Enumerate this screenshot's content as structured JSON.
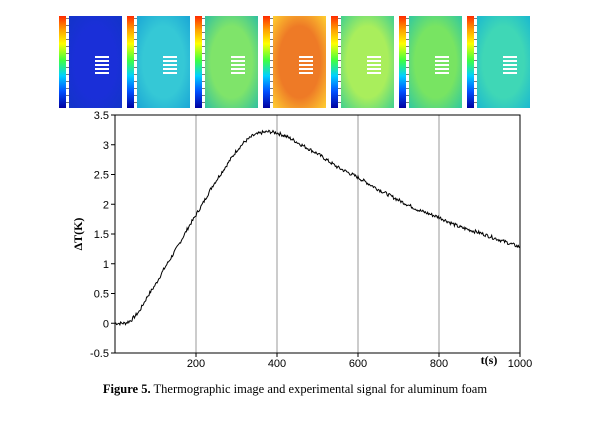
{
  "thermographic_images": {
    "count": 7,
    "field_colors": [
      "#1a2fd8",
      "#35c8d6",
      "#7fe46a",
      "#ee7a26",
      "#a9ee5c",
      "#78e462",
      "#3fd7b6"
    ],
    "edge_colors": [
      "#1234c8",
      "#1aa6d6",
      "#30c0a0",
      "#ffcf30",
      "#40d090",
      "#30c8a0",
      "#1ab8d0"
    ]
  },
  "chart_data": {
    "type": "line",
    "title": "",
    "xlabel": "t(s)",
    "ylabel": "ΔT(K)",
    "xlim": [
      0,
      1000
    ],
    "ylim": [
      -0.5,
      3.5
    ],
    "x_ticks": [
      200,
      400,
      600,
      800,
      1000
    ],
    "y_ticks": [
      "-0.5",
      "0",
      "0.5",
      "1",
      "1.5",
      "2",
      "2.5",
      "3",
      "3.5"
    ],
    "grid": "vertical",
    "series": [
      {
        "color": "#000000",
        "points": [
          [
            0,
            0.0
          ],
          [
            25,
            0.0
          ],
          [
            40,
            0.05
          ],
          [
            60,
            0.2
          ],
          [
            80,
            0.45
          ],
          [
            100,
            0.65
          ],
          [
            120,
            0.9
          ],
          [
            140,
            1.12
          ],
          [
            160,
            1.35
          ],
          [
            180,
            1.6
          ],
          [
            200,
            1.82
          ],
          [
            220,
            2.05
          ],
          [
            240,
            2.3
          ],
          [
            260,
            2.5
          ],
          [
            280,
            2.7
          ],
          [
            300,
            2.9
          ],
          [
            320,
            3.05
          ],
          [
            340,
            3.15
          ],
          [
            360,
            3.2
          ],
          [
            380,
            3.22
          ],
          [
            400,
            3.2
          ],
          [
            420,
            3.15
          ],
          [
            440,
            3.08
          ],
          [
            460,
            3.0
          ],
          [
            500,
            2.85
          ],
          [
            550,
            2.62
          ],
          [
            600,
            2.45
          ],
          [
            650,
            2.25
          ],
          [
            700,
            2.07
          ],
          [
            750,
            1.9
          ],
          [
            800,
            1.78
          ],
          [
            850,
            1.62
          ],
          [
            900,
            1.52
          ],
          [
            950,
            1.4
          ],
          [
            1000,
            1.28
          ]
        ]
      }
    ]
  },
  "caption": {
    "label": "Figure   5.",
    "text": " Thermographic image and experimental signal for aluminum foam"
  }
}
